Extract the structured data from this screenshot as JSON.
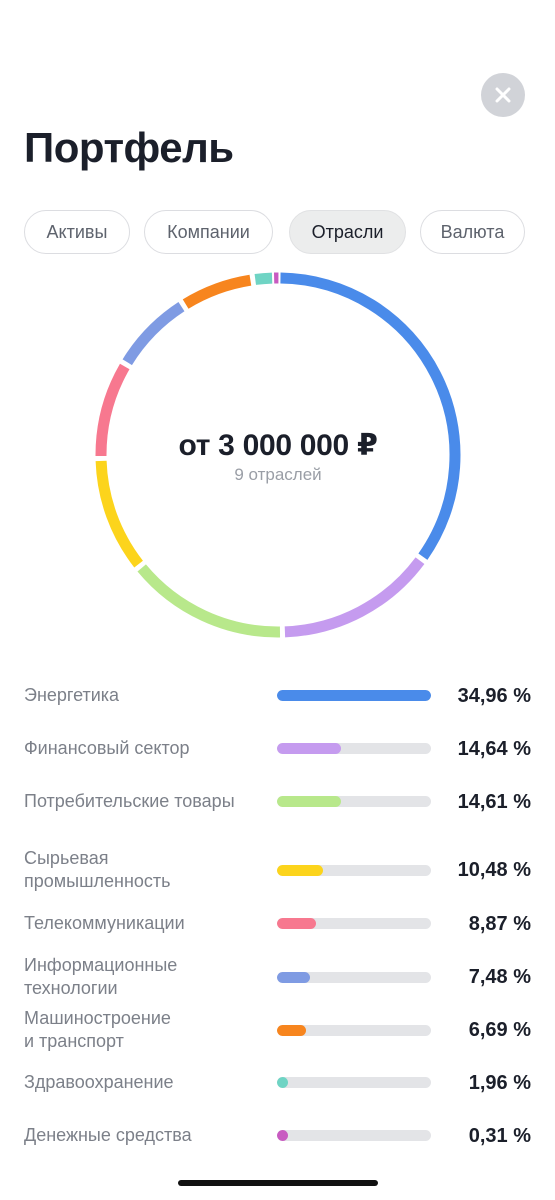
{
  "header": {
    "title": "Портфель",
    "close_icon": "close-icon"
  },
  "tabs": [
    {
      "label": "Активы",
      "active": false
    },
    {
      "label": "Компании",
      "active": false
    },
    {
      "label": "Отрасли",
      "active": true
    },
    {
      "label": "Валюта",
      "active": false
    }
  ],
  "summary": {
    "amount": "от 3 000 000 ₽",
    "subtitle": "9 отраслей"
  },
  "sectors": [
    {
      "name": "Энергетика",
      "percent_label": "34,96 %",
      "value": 34.96,
      "color": "#4a8bea"
    },
    {
      "name": "Финансовый сектор",
      "percent_label": "14,64 %",
      "value": 14.64,
      "color": "#c59bef"
    },
    {
      "name": "Потребительские товары",
      "percent_label": "14,61 %",
      "value": 14.61,
      "color": "#b8e88b"
    },
    {
      "name": "Сырьевая промышленность",
      "percent_label": "10,48 %",
      "value": 10.48,
      "color": "#fcd41c"
    },
    {
      "name": "Телекоммуникации",
      "percent_label": "8,87 %",
      "value": 8.87,
      "color": "#f7788f"
    },
    {
      "name": "Информационные технологии",
      "percent_label": "7,48 %",
      "value": 7.48,
      "color": "#7f9be3"
    },
    {
      "name": "Машиностроение и транспорт",
      "percent_label": "6,69 %",
      "value": 6.69,
      "color": "#f7851e"
    },
    {
      "name": "Здравоохранение",
      "percent_label": "1,96 %",
      "value": 1.96,
      "color": "#6fd4c4"
    },
    {
      "name": "Денежные средства",
      "percent_label": "0,31 %",
      "value": 0.31,
      "color": "#c85bc1"
    }
  ]
}
